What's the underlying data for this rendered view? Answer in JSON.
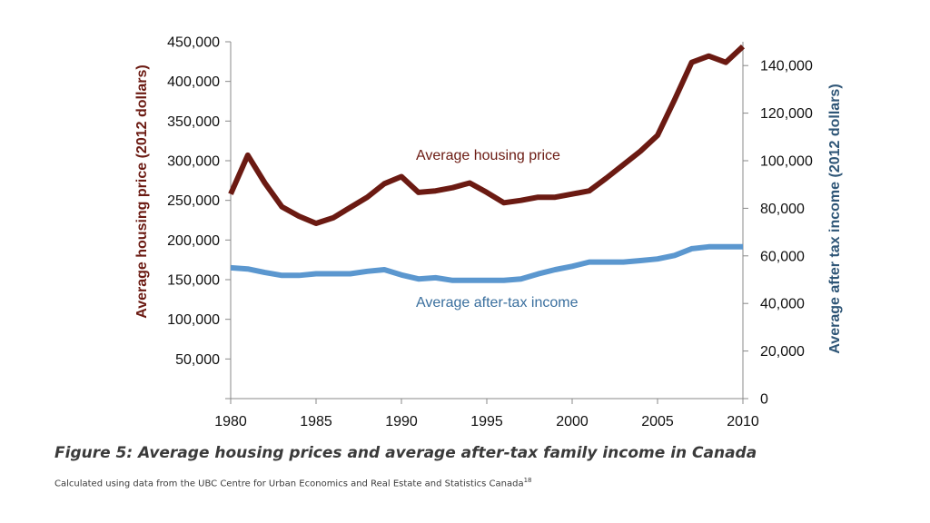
{
  "figure": {
    "caption": "Figure 5: Average housing prices and average after-tax family income in Canada",
    "source": "Calculated using data from the UBC Centre for Urban Economics and Real Estate and Statistics Canada",
    "source_footnote": "18"
  },
  "chart_data": {
    "type": "line",
    "title": "",
    "xlabel": "",
    "ylabel": "Average housing price (2012 dollars)",
    "ylabel_right": "Average after tax income (2012 dollars)",
    "xlim": [
      1980,
      2010
    ],
    "ylim": [
      0,
      450000
    ],
    "ylim_right": [
      0,
      150000
    ],
    "x_ticks": [
      "1980",
      "1985",
      "1990",
      "1995",
      "2000",
      "2005",
      "2010"
    ],
    "y_ticks": [
      "50,000",
      "100,000",
      "150,000",
      "200,000",
      "250,000",
      "300,000",
      "350,000",
      "400,000",
      "450,000"
    ],
    "y_ticks_right": [
      "0",
      "20,000",
      "40,000",
      "60,000",
      "80,000",
      "100,000",
      "120,000",
      "140,000"
    ],
    "grid": false,
    "x": [
      1980,
      1981,
      1982,
      1983,
      1984,
      1985,
      1986,
      1987,
      1988,
      1989,
      1990,
      1991,
      1992,
      1993,
      1994,
      1995,
      1996,
      1997,
      1998,
      1999,
      2000,
      2001,
      2002,
      2003,
      2004,
      2005,
      2006,
      2007,
      2008,
      2009,
      2010
    ],
    "series": [
      {
        "name": "Average housing price",
        "axis": "left",
        "color": "#6b1a12",
        "values": [
          258000,
          307000,
          272000,
          242000,
          230000,
          221000,
          228000,
          241000,
          254000,
          271000,
          280000,
          260000,
          262000,
          266000,
          272000,
          260000,
          247000,
          250000,
          254000,
          254000,
          258000,
          262000,
          278000,
          295000,
          312000,
          332000,
          377000,
          424000,
          432000,
          424000,
          444000
        ]
      },
      {
        "name": "Average after-tax income",
        "axis": "right",
        "color": "#5b97cf",
        "values": [
          55000,
          54500,
          53000,
          51800,
          51800,
          52500,
          52500,
          52500,
          53500,
          54200,
          52000,
          50300,
          50800,
          49700,
          49700,
          49700,
          49700,
          50300,
          52400,
          54200,
          55600,
          57400,
          57400,
          57400,
          58000,
          58700,
          60200,
          63000,
          63800,
          63800,
          63800
        ]
      }
    ]
  }
}
